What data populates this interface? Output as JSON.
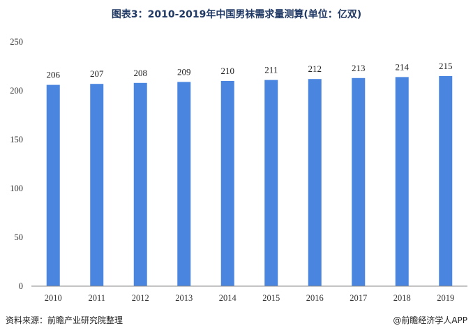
{
  "title": "图表3：2010-2019年中国男袜需求量测算(单位：亿双)",
  "source": "资料来源：前瞻产业研究院整理",
  "brand": "@前瞻经济学人APP",
  "colors": {
    "bar": "#4a86e0",
    "title": "#1f3864",
    "axis": "#888888"
  },
  "chart_data": {
    "type": "bar",
    "title": "图表3：2010-2019年中国男袜需求量测算(单位：亿双)",
    "categories": [
      "2010",
      "2011",
      "2012",
      "2013",
      "2014",
      "2015",
      "2016",
      "2017",
      "2018",
      "2019"
    ],
    "values": [
      206,
      207,
      208,
      209,
      210,
      211,
      212,
      213,
      214,
      215
    ],
    "ylim": [
      0,
      250
    ],
    "yticks": [
      0,
      50,
      100,
      150,
      200,
      250
    ],
    "grid": false,
    "data_labels": true
  }
}
